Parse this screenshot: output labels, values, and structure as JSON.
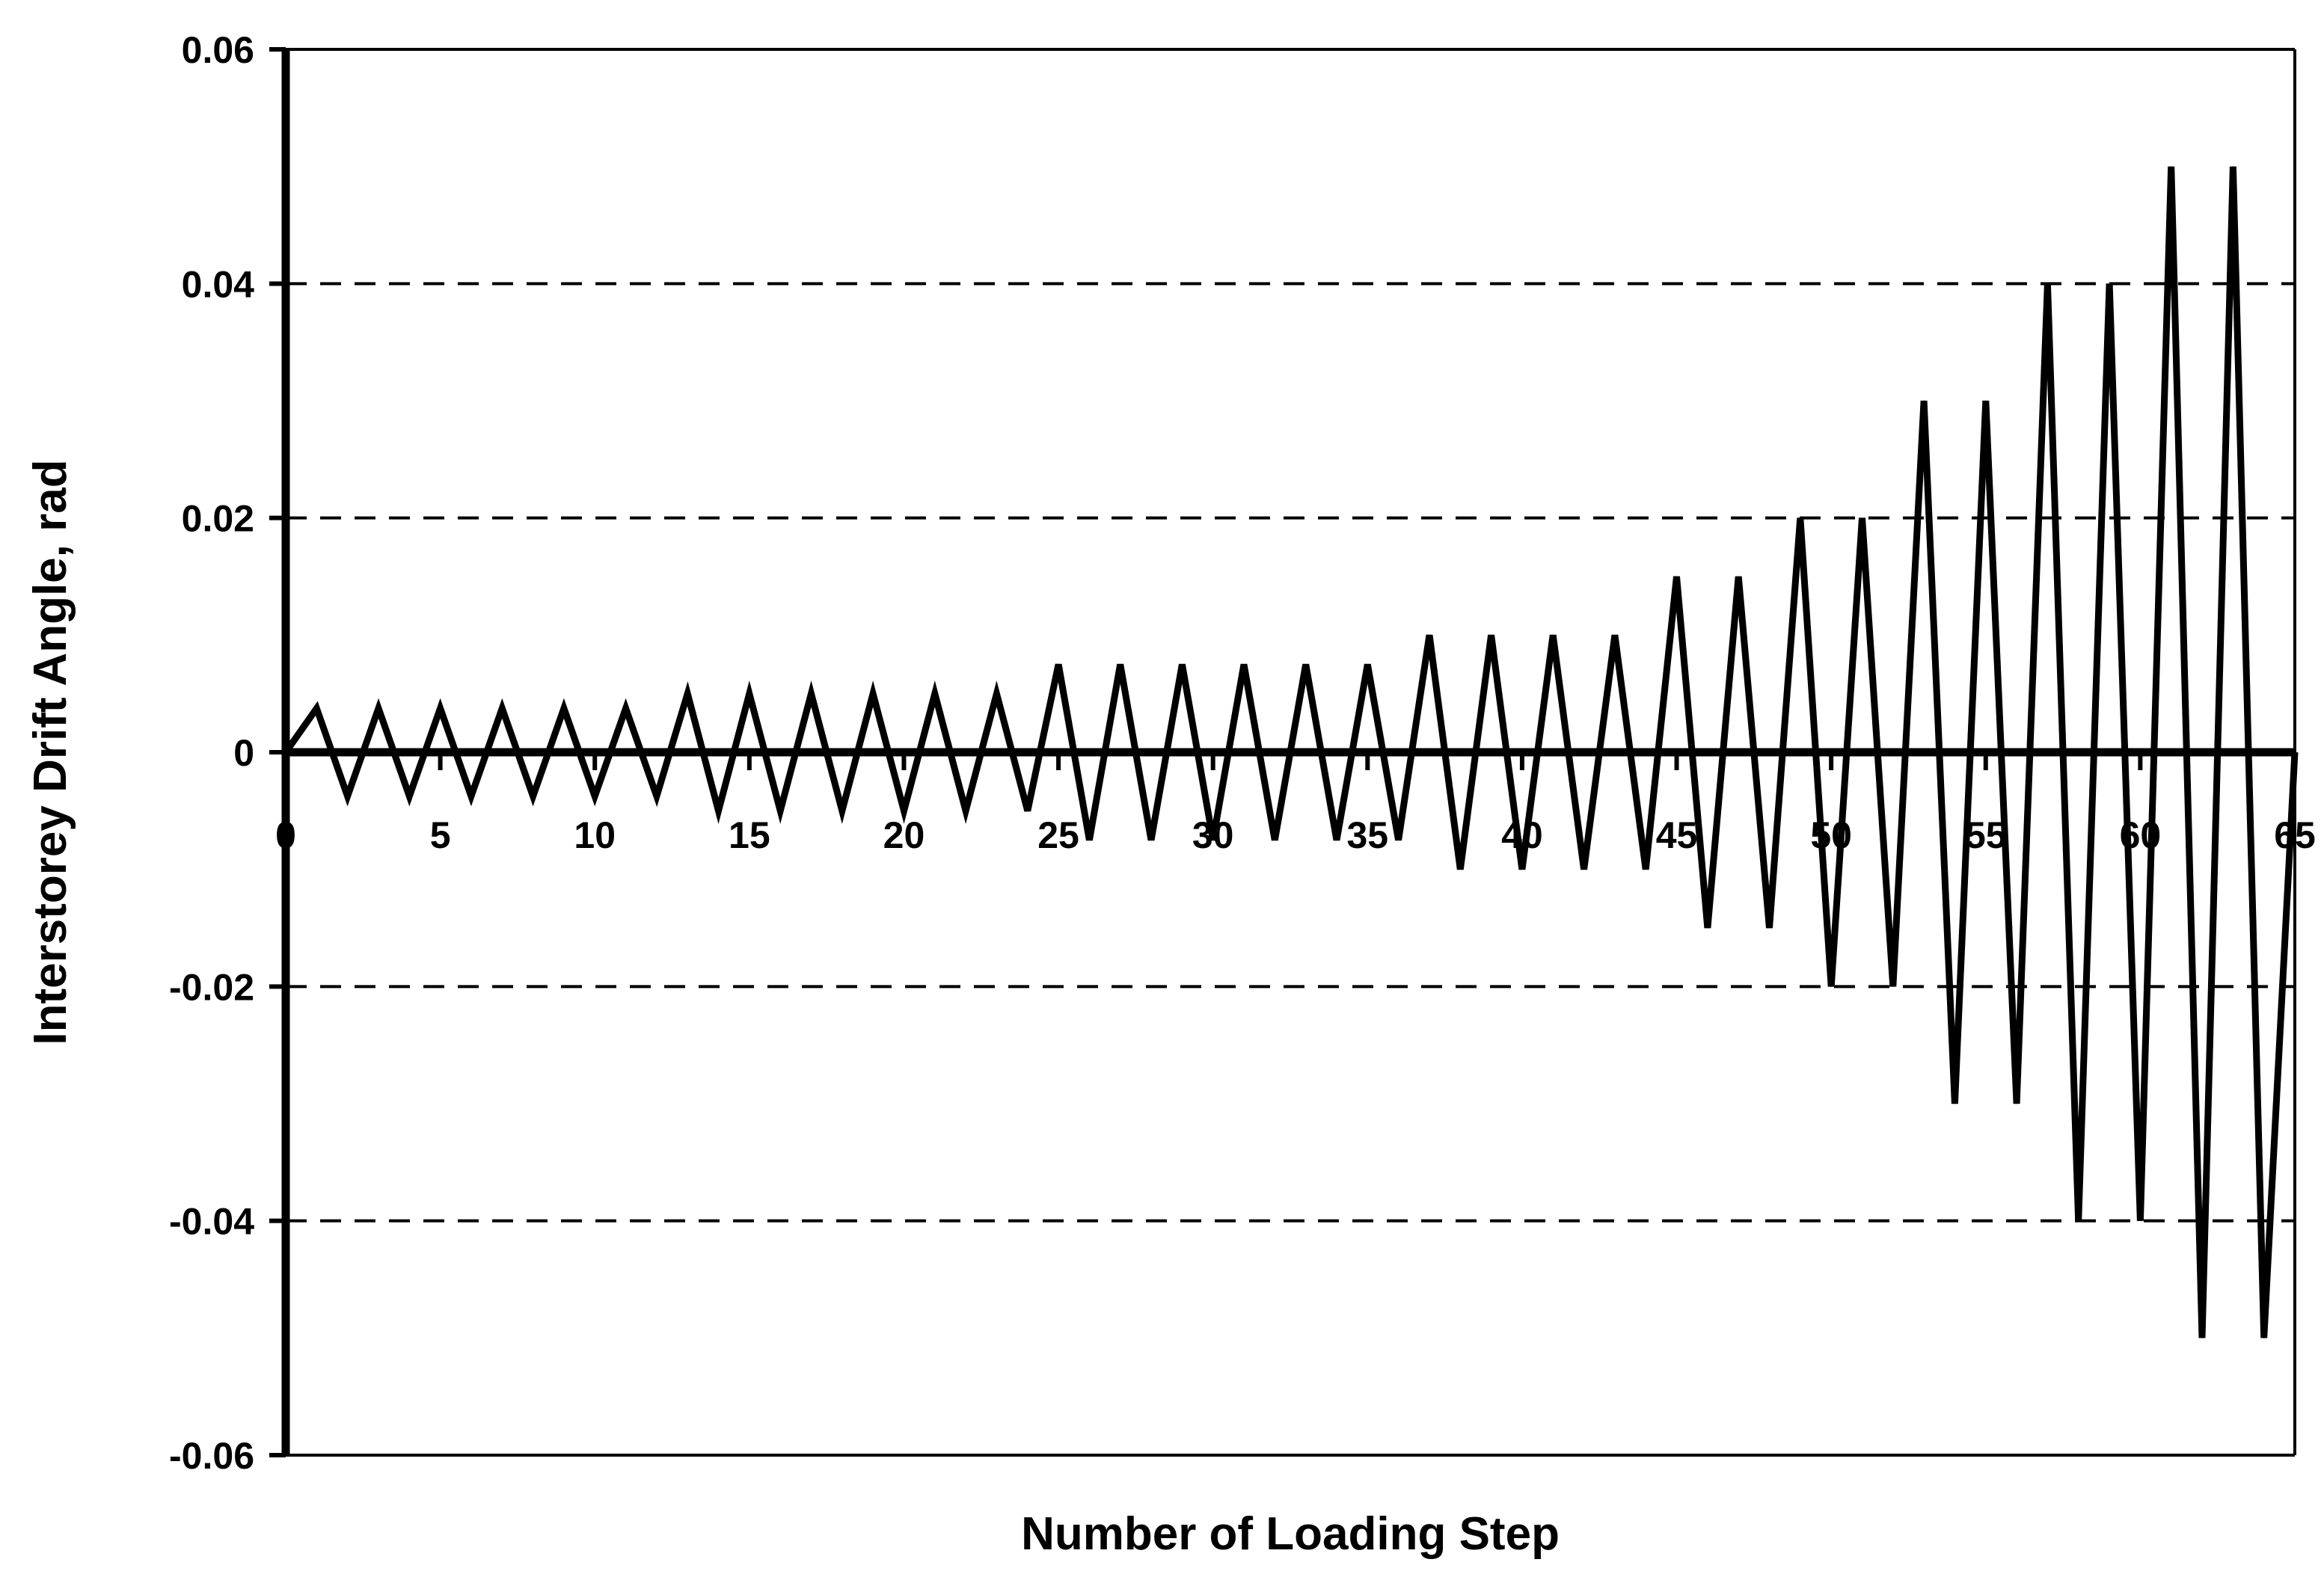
{
  "chart_data": {
    "type": "line",
    "title": "",
    "xlabel": "Number of Loading Step",
    "ylabel": "Interstorey Drift Angle, rad",
    "xlim": [
      0,
      65
    ],
    "ylim": [
      -0.06,
      0.06
    ],
    "x_ticks": [
      0,
      5,
      10,
      15,
      20,
      25,
      30,
      35,
      40,
      45,
      50,
      55,
      60,
      65
    ],
    "x_tick_labels": [
      "0",
      "5",
      "10",
      "15",
      "20",
      "25",
      "30",
      "35",
      "40",
      "45",
      "50",
      "55",
      "60",
      "65"
    ],
    "y_ticks": [
      -0.06,
      -0.04,
      -0.02,
      0,
      0.02,
      0.04,
      0.06
    ],
    "y_tick_labels": [
      "-0.06",
      "-0.04",
      "-0.02",
      "0",
      "0.02",
      "0.04",
      "0.06"
    ],
    "grid": "horizontal dashed",
    "line_color": "#000000",
    "series": [
      {
        "x": [
          0,
          1,
          2,
          3,
          4,
          5,
          6,
          7,
          8,
          9,
          10,
          11,
          12,
          13,
          14,
          15,
          16,
          17,
          18,
          19,
          20,
          21,
          22,
          23,
          24,
          25,
          26,
          27,
          28,
          29,
          30,
          31,
          32,
          33,
          34,
          35,
          36,
          37,
          38,
          39,
          40,
          41,
          42,
          43,
          44,
          45,
          46,
          47,
          48,
          49,
          50,
          51,
          52,
          53,
          54,
          55,
          56,
          57,
          58,
          59,
          60,
          61,
          62,
          63,
          64,
          65
        ],
        "y": [
          0,
          0.00375,
          -0.00375,
          0.00375,
          -0.00375,
          0.00375,
          -0.00375,
          0.00375,
          -0.00375,
          0.00375,
          -0.00375,
          0.00375,
          -0.00375,
          0.005,
          -0.005,
          0.005,
          -0.005,
          0.005,
          -0.005,
          0.005,
          -0.005,
          0.005,
          -0.005,
          0.005,
          -0.005,
          0.0075,
          -0.0075,
          0.0075,
          -0.0075,
          0.0075,
          -0.0075,
          0.0075,
          -0.0075,
          0.0075,
          -0.0075,
          0.0075,
          -0.0075,
          0.01,
          -0.01,
          0.01,
          -0.01,
          0.01,
          -0.01,
          0.01,
          -0.01,
          0.015,
          -0.015,
          0.015,
          -0.015,
          0.02,
          -0.02,
          0.02,
          -0.02,
          0.03,
          -0.03,
          0.03,
          -0.03,
          0.04,
          -0.04,
          0.04,
          -0.04,
          0.05,
          -0.05,
          0.05,
          -0.05,
          0
        ]
      }
    ]
  }
}
